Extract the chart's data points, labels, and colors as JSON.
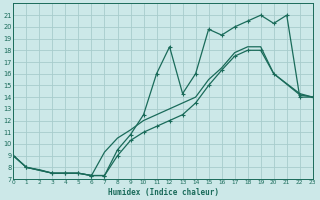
{
  "xlabel": "Humidex (Indice chaleur)",
  "bg_color": "#cce8e8",
  "grid_color": "#a8cccc",
  "line_color": "#1a6b5a",
  "ylim": [
    7,
    22
  ],
  "xlim": [
    0,
    23
  ],
  "yticks": [
    7,
    8,
    9,
    10,
    11,
    12,
    13,
    14,
    15,
    16,
    17,
    18,
    19,
    20,
    21
  ],
  "xticks": [
    0,
    1,
    2,
    3,
    4,
    5,
    6,
    7,
    8,
    9,
    10,
    11,
    12,
    13,
    14,
    15,
    16,
    17,
    18,
    19,
    20,
    21,
    22,
    23
  ],
  "line1_x": [
    0,
    1,
    2,
    3,
    4,
    5,
    6,
    7,
    8,
    9,
    10,
    11,
    12,
    13,
    14,
    15,
    16,
    17,
    18,
    19,
    20,
    22,
    23
  ],
  "line1_y": [
    9,
    8,
    7.8,
    7.5,
    7.5,
    7.5,
    7.3,
    9.3,
    10.5,
    11.2,
    12.0,
    12.5,
    13.0,
    13.5,
    14.0,
    15.5,
    16.5,
    17.8,
    18.3,
    18.3,
    16.0,
    14.3,
    14.0
  ],
  "line2_x": [
    0,
    1,
    3,
    4,
    5,
    6,
    7,
    8,
    9,
    10,
    11,
    12,
    13,
    14,
    15,
    16,
    17,
    18,
    19,
    20,
    21,
    22,
    23
  ],
  "line2_y": [
    9,
    8,
    7.5,
    7.5,
    7.5,
    7.3,
    7.3,
    9.5,
    10.8,
    12.5,
    16.0,
    18.3,
    14.3,
    16.0,
    19.8,
    19.3,
    20.0,
    20.5,
    21.0,
    20.3,
    21.0,
    14.0,
    14.0
  ],
  "line3_x": [
    0,
    1,
    3,
    4,
    5,
    6,
    7,
    8,
    9,
    10,
    11,
    12,
    13,
    14,
    15,
    16,
    17,
    18,
    19,
    20,
    22,
    23
  ],
  "line3_y": [
    9,
    8,
    7.5,
    7.5,
    7.5,
    7.3,
    7.3,
    9.0,
    10.3,
    11.0,
    11.5,
    12.0,
    12.5,
    13.5,
    15.0,
    16.3,
    17.5,
    18.0,
    18.0,
    16.0,
    14.2,
    14.0
  ]
}
